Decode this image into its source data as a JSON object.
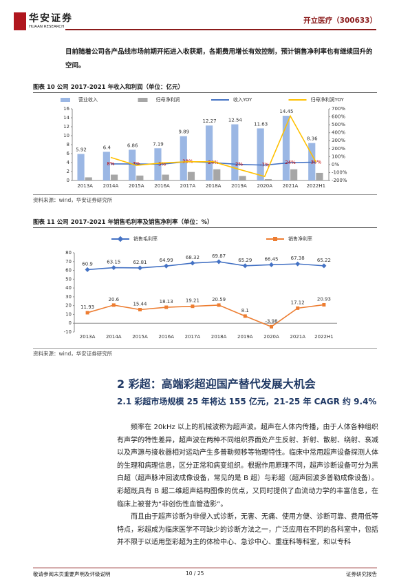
{
  "header": {
    "logo_text": "华安证券",
    "logo_sub": "HUAAN RESEARCH",
    "company": "开立医疗（300633）"
  },
  "intro": "目前随着公司各产品线市场前期开拓进入收获期，各期费用增长有效控制，预计销售净利率也有继续回升的空间。",
  "chart_data": [
    {
      "type": "bar",
      "title": "图表 10 公司 2017-2021 年收入和利润（单位：亿元）",
      "note": "资料来源：wind，华安证券研究所",
      "categories": [
        "2013A",
        "2014A",
        "2015A",
        "2016A",
        "2017A",
        "2018A",
        "2019A",
        "2020A",
        "2021A",
        "2022H1"
      ],
      "series": [
        {
          "name": "营业收入",
          "type": "bar",
          "color": "#9bb7e4",
          "data_labels": true,
          "values": [
            5.92,
            6.4,
            6.86,
            7.19,
            9.89,
            12.27,
            12.54,
            11.63,
            14.45,
            8.36
          ]
        },
        {
          "name": "归母净利润",
          "type": "bar",
          "color": "#a6a6a6",
          "values": [
            0.7,
            1.3,
            1.1,
            1.3,
            1.9,
            2.5,
            1.0,
            0.3,
            2.5,
            1.7
          ]
        },
        {
          "name": "收入YOY",
          "type": "line",
          "axis": "y2",
          "color": "#4472c4",
          "label_color": "#c00000",
          "values": [
            null,
            8,
            7,
            5,
            38,
            24,
            2,
            -7,
            24,
            30
          ],
          "value_labels": [
            null,
            "8%",
            "7%",
            "5%",
            "38%",
            "24%",
            "2%",
            "-7%",
            "24%",
            "30%"
          ]
        },
        {
          "name": "归母净利润YOY",
          "type": "line",
          "axis": "y2",
          "color": "#ffc000",
          "values": [
            null,
            90,
            -10,
            20,
            35,
            35,
            -60,
            -150,
            610,
            30
          ]
        }
      ],
      "ylim": [
        0,
        16
      ],
      "yticks": [
        0,
        2,
        4,
        6,
        8,
        10,
        12,
        14,
        16
      ],
      "y2lim": [
        -200,
        700
      ],
      "y2ticks": [
        {
          "value": -200,
          "label": "-200%"
        },
        {
          "value": -100,
          "label": "-100%"
        },
        {
          "value": 0,
          "label": "0%"
        },
        {
          "value": 100,
          "label": "100%"
        },
        {
          "value": 200,
          "label": "200%"
        },
        {
          "value": 300,
          "label": "300%"
        },
        {
          "value": 400,
          "label": "400%"
        },
        {
          "value": 500,
          "label": "500%"
        },
        {
          "value": 600,
          "label": "600%"
        },
        {
          "value": 700,
          "label": "700%"
        }
      ],
      "grid": false
    },
    {
      "type": "line",
      "title": "图表 11 公司 2017-2021 年销售毛利率及销售净利率（单位：%）",
      "note": "资料来源：wind，华安证券研究所",
      "categories": [
        "2013A",
        "2014A",
        "2015A",
        "2016A",
        "2017A",
        "2018A",
        "2019A",
        "2020A",
        "2021A",
        "2022H1"
      ],
      "series": [
        {
          "name": "销售毛利率",
          "color": "#4472c4",
          "marker": "diamond",
          "data_labels": true,
          "values": [
            60.9,
            63.15,
            62.81,
            64.99,
            68.32,
            69.87,
            65.29,
            66.45,
            67.38,
            65.22
          ]
        },
        {
          "name": "销售净利率",
          "color": "#ed7d31",
          "marker": "square",
          "data_labels": true,
          "values": [
            11.93,
            20.6,
            15.44,
            18.13,
            19.21,
            20.59,
            8.1,
            -3.98,
            17.12,
            20.93
          ]
        }
      ],
      "ylim": [
        -10,
        80
      ],
      "yticks": [
        -10,
        0,
        10,
        20,
        30,
        40,
        50,
        60,
        70,
        80
      ],
      "grid": false
    }
  ],
  "section": {
    "heading": "2 彩超：高端彩超迎国产替代发展大机会",
    "subheading": "2.1 彩超市场规模 25 年将达 155 亿元，21-25 年 CAGR 约 9.4%",
    "paragraphs": [
      "频率在 20kHz 以上的机械波称为超声波。超声在人体内传播，由于人体各种组织有声学的特性差异，超声波在两种不同组织界面处产生反射、折射、散射、绕射、衰减以及声源与接收器相对运动产生多普勒频移等物理特性。临床中常用超声设备探测人体的生理和病理信息，区分正常和病变组织。根据作用原理不同，超声诊断设备可分为黑白超（超声脉冲回波成像设备，常见的是 B 超）与彩超（超声回波多普勒成像设备）。彩超既具有 B 超二维超声结构图像的优点，又同时提供了血流动力学的丰富信息，在临床上被誉为“非创伤性血管造影”。",
      "而且由于超声诊断为非侵入式诊断，无害、无痛、使用方便、诊断可靠、费用低等特点，彩超成为临床医学不可缺少的诊断方法之一，广泛应用在不同的各科室中，包括并不限于以适用型彩超为主的体检中心、急诊中心、重症科等科室，和以专科"
    ]
  },
  "footer": {
    "left": "敬请参阅末页重要声明及评级说明",
    "page": "10 / 25",
    "right": "证券研究报告"
  }
}
